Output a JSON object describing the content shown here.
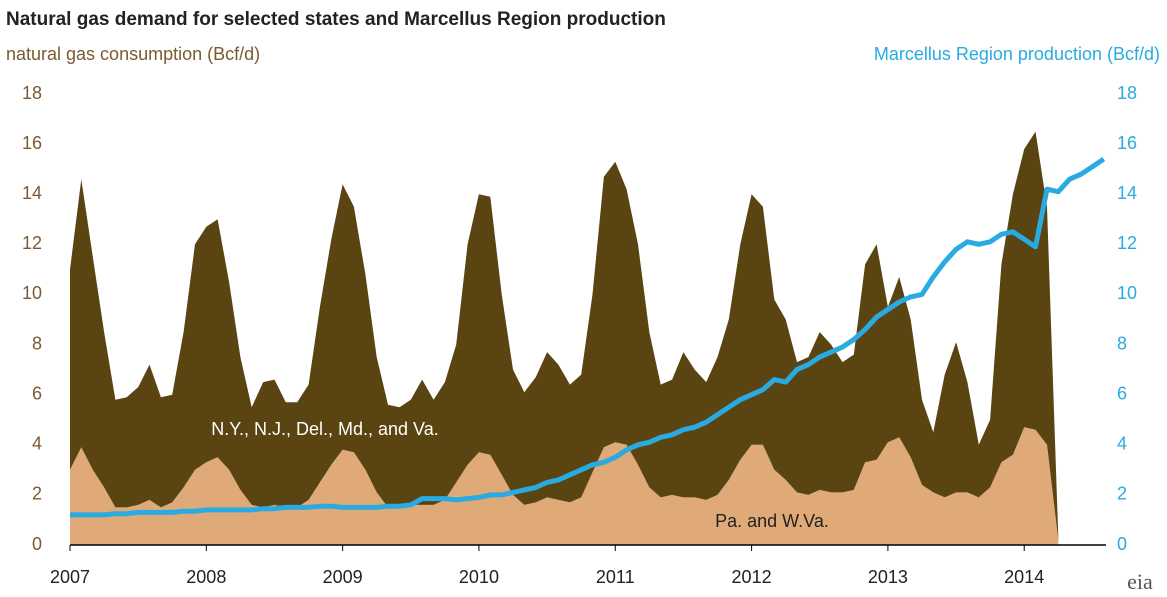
{
  "chart_data": {
    "type": "stacked-area-line",
    "title": "Natural gas demand for selected states and Marcellus Region production",
    "y_label": "natural gas consumption (Bcf/d)",
    "y2_label": "Marcellus Region production (Bcf/d)",
    "logo": "eia",
    "x": [
      2007,
      2007.083,
      2007.167,
      2007.25,
      2007.333,
      2007.417,
      2007.5,
      2007.583,
      2007.667,
      2007.75,
      2007.833,
      2007.917,
      2008,
      2008.083,
      2008.167,
      2008.25,
      2008.333,
      2008.417,
      2008.5,
      2008.583,
      2008.667,
      2008.75,
      2008.833,
      2008.917,
      2009,
      2009.083,
      2009.167,
      2009.25,
      2009.333,
      2009.417,
      2009.5,
      2009.583,
      2009.667,
      2009.75,
      2009.833,
      2009.917,
      2010,
      2010.083,
      2010.167,
      2010.25,
      2010.333,
      2010.417,
      2010.5,
      2010.583,
      2010.667,
      2010.75,
      2010.833,
      2010.917,
      2011,
      2011.083,
      2011.167,
      2011.25,
      2011.333,
      2011.417,
      2011.5,
      2011.583,
      2011.667,
      2011.75,
      2011.833,
      2011.917,
      2012,
      2012.083,
      2012.167,
      2012.25,
      2012.333,
      2012.417,
      2012.5,
      2012.583,
      2012.667,
      2012.75,
      2012.833,
      2012.917,
      2013,
      2013.083,
      2013.167,
      2013.25,
      2013.333,
      2013.417,
      2013.5,
      2013.583,
      2013.667,
      2013.75,
      2013.833,
      2013.917,
      2014,
      2014.083,
      2014.167,
      2014.25,
      2014.333,
      2014.417,
      2014.5,
      2014.583
    ],
    "series": [
      {
        "name": "Pa. and W.Va.",
        "color": "#e0aa78",
        "stack": true,
        "values": [
          3,
          3.9,
          3,
          2.3,
          1.5,
          1.5,
          1.6,
          1.8,
          1.5,
          1.7,
          2.3,
          3,
          3.3,
          3.5,
          3,
          2.2,
          1.6,
          1.5,
          1.6,
          1.5,
          1.5,
          1.8,
          2.5,
          3.2,
          3.8,
          3.7,
          3,
          2.1,
          1.5,
          1.5,
          1.6,
          1.6,
          1.6,
          1.8,
          2.5,
          3.2,
          3.7,
          3.6,
          2.8,
          2,
          1.6,
          1.7,
          1.9,
          1.8,
          1.7,
          1.9,
          2.9,
          3.9,
          4.1,
          4,
          3.2,
          2.3,
          1.9,
          2,
          1.9,
          1.9,
          1.8,
          2,
          2.6,
          3.4,
          4,
          4,
          3,
          2.6,
          2.1,
          2,
          2.2,
          2.1,
          2.1,
          2.2,
          3.3,
          3.4,
          4.1,
          4.3,
          3.5,
          2.4,
          2.1,
          1.9,
          2.1,
          2.1,
          1.9,
          2.3,
          3.3,
          3.6,
          4.7,
          4.6,
          4,
          0.2,
          null,
          null,
          null,
          null
        ]
      },
      {
        "name": "N.Y., N.J., Del., Md., and Va.",
        "color": "#5a4512",
        "stack": true,
        "values": [
          8,
          10.7,
          8.5,
          6.2,
          4.3,
          4.4,
          4.7,
          5.4,
          4.4,
          4.3,
          6.2,
          9,
          9.4,
          9.5,
          7.5,
          5.3,
          3.9,
          5,
          5,
          4.2,
          4.2,
          4.6,
          7,
          9,
          10.6,
          9.8,
          7.8,
          5.4,
          4.1,
          4,
          4.2,
          5,
          4.2,
          4.7,
          5.5,
          8.8,
          10.3,
          10.3,
          7.2,
          5,
          4.5,
          5,
          5.8,
          5.4,
          4.7,
          4.9,
          7.1,
          10.8,
          11.2,
          10.2,
          8.8,
          6.2,
          4.5,
          4.6,
          5.8,
          5.1,
          4.7,
          5.5,
          6.4,
          8.6,
          10,
          9.5,
          6.8,
          6.4,
          5.2,
          5.5,
          6.3,
          5.9,
          5.2,
          5.4,
          7.9,
          8.6,
          5.4,
          6.4,
          5.5,
          3.4,
          2.4,
          4.9,
          6,
          4.4,
          2.1,
          2.7,
          7.9,
          10.4,
          11.1,
          11.9,
          9.5,
          0.1,
          null,
          null,
          null,
          null
        ]
      },
      {
        "name": "Marcellus Region production",
        "color": "#29abe2",
        "axis": "y2",
        "values": [
          1.2,
          1.2,
          1.2,
          1.2,
          1.25,
          1.25,
          1.3,
          1.3,
          1.3,
          1.3,
          1.35,
          1.35,
          1.4,
          1.4,
          1.4,
          1.4,
          1.4,
          1.45,
          1.45,
          1.5,
          1.5,
          1.5,
          1.55,
          1.55,
          1.5,
          1.5,
          1.5,
          1.5,
          1.55,
          1.55,
          1.6,
          1.85,
          1.85,
          1.85,
          1.8,
          1.85,
          1.9,
          2,
          2,
          2.1,
          2.2,
          2.3,
          2.5,
          2.6,
          2.8,
          3,
          3.2,
          3.3,
          3.5,
          3.8,
          4,
          4.1,
          4.3,
          4.4,
          4.6,
          4.7,
          4.9,
          5.2,
          5.5,
          5.8,
          6,
          6.2,
          6.6,
          6.5,
          7,
          7.2,
          7.5,
          7.7,
          7.9,
          8.2,
          8.6,
          9.1,
          9.4,
          9.7,
          9.9,
          10,
          10.7,
          11.3,
          11.8,
          12.1,
          12,
          12.1,
          12.4,
          12.5,
          12.2,
          11.9,
          14.2,
          14.1,
          14.6,
          14.8,
          15.1,
          15.4
        ]
      }
    ],
    "xlim": [
      2007,
      2014.6
    ],
    "xticks": [
      2007,
      2008,
      2009,
      2010,
      2011,
      2012,
      2013,
      2014
    ],
    "ylim": [
      0,
      18
    ],
    "yticks": [
      0,
      2,
      4,
      6,
      8,
      10,
      12,
      14,
      16,
      18
    ],
    "y2lim": [
      0,
      18
    ],
    "y2ticks": [
      0,
      2,
      4,
      6,
      8,
      10,
      12,
      14,
      16,
      18
    ],
    "y_label_color": "#7b5a32",
    "y2_label_color": "#29abe2"
  }
}
